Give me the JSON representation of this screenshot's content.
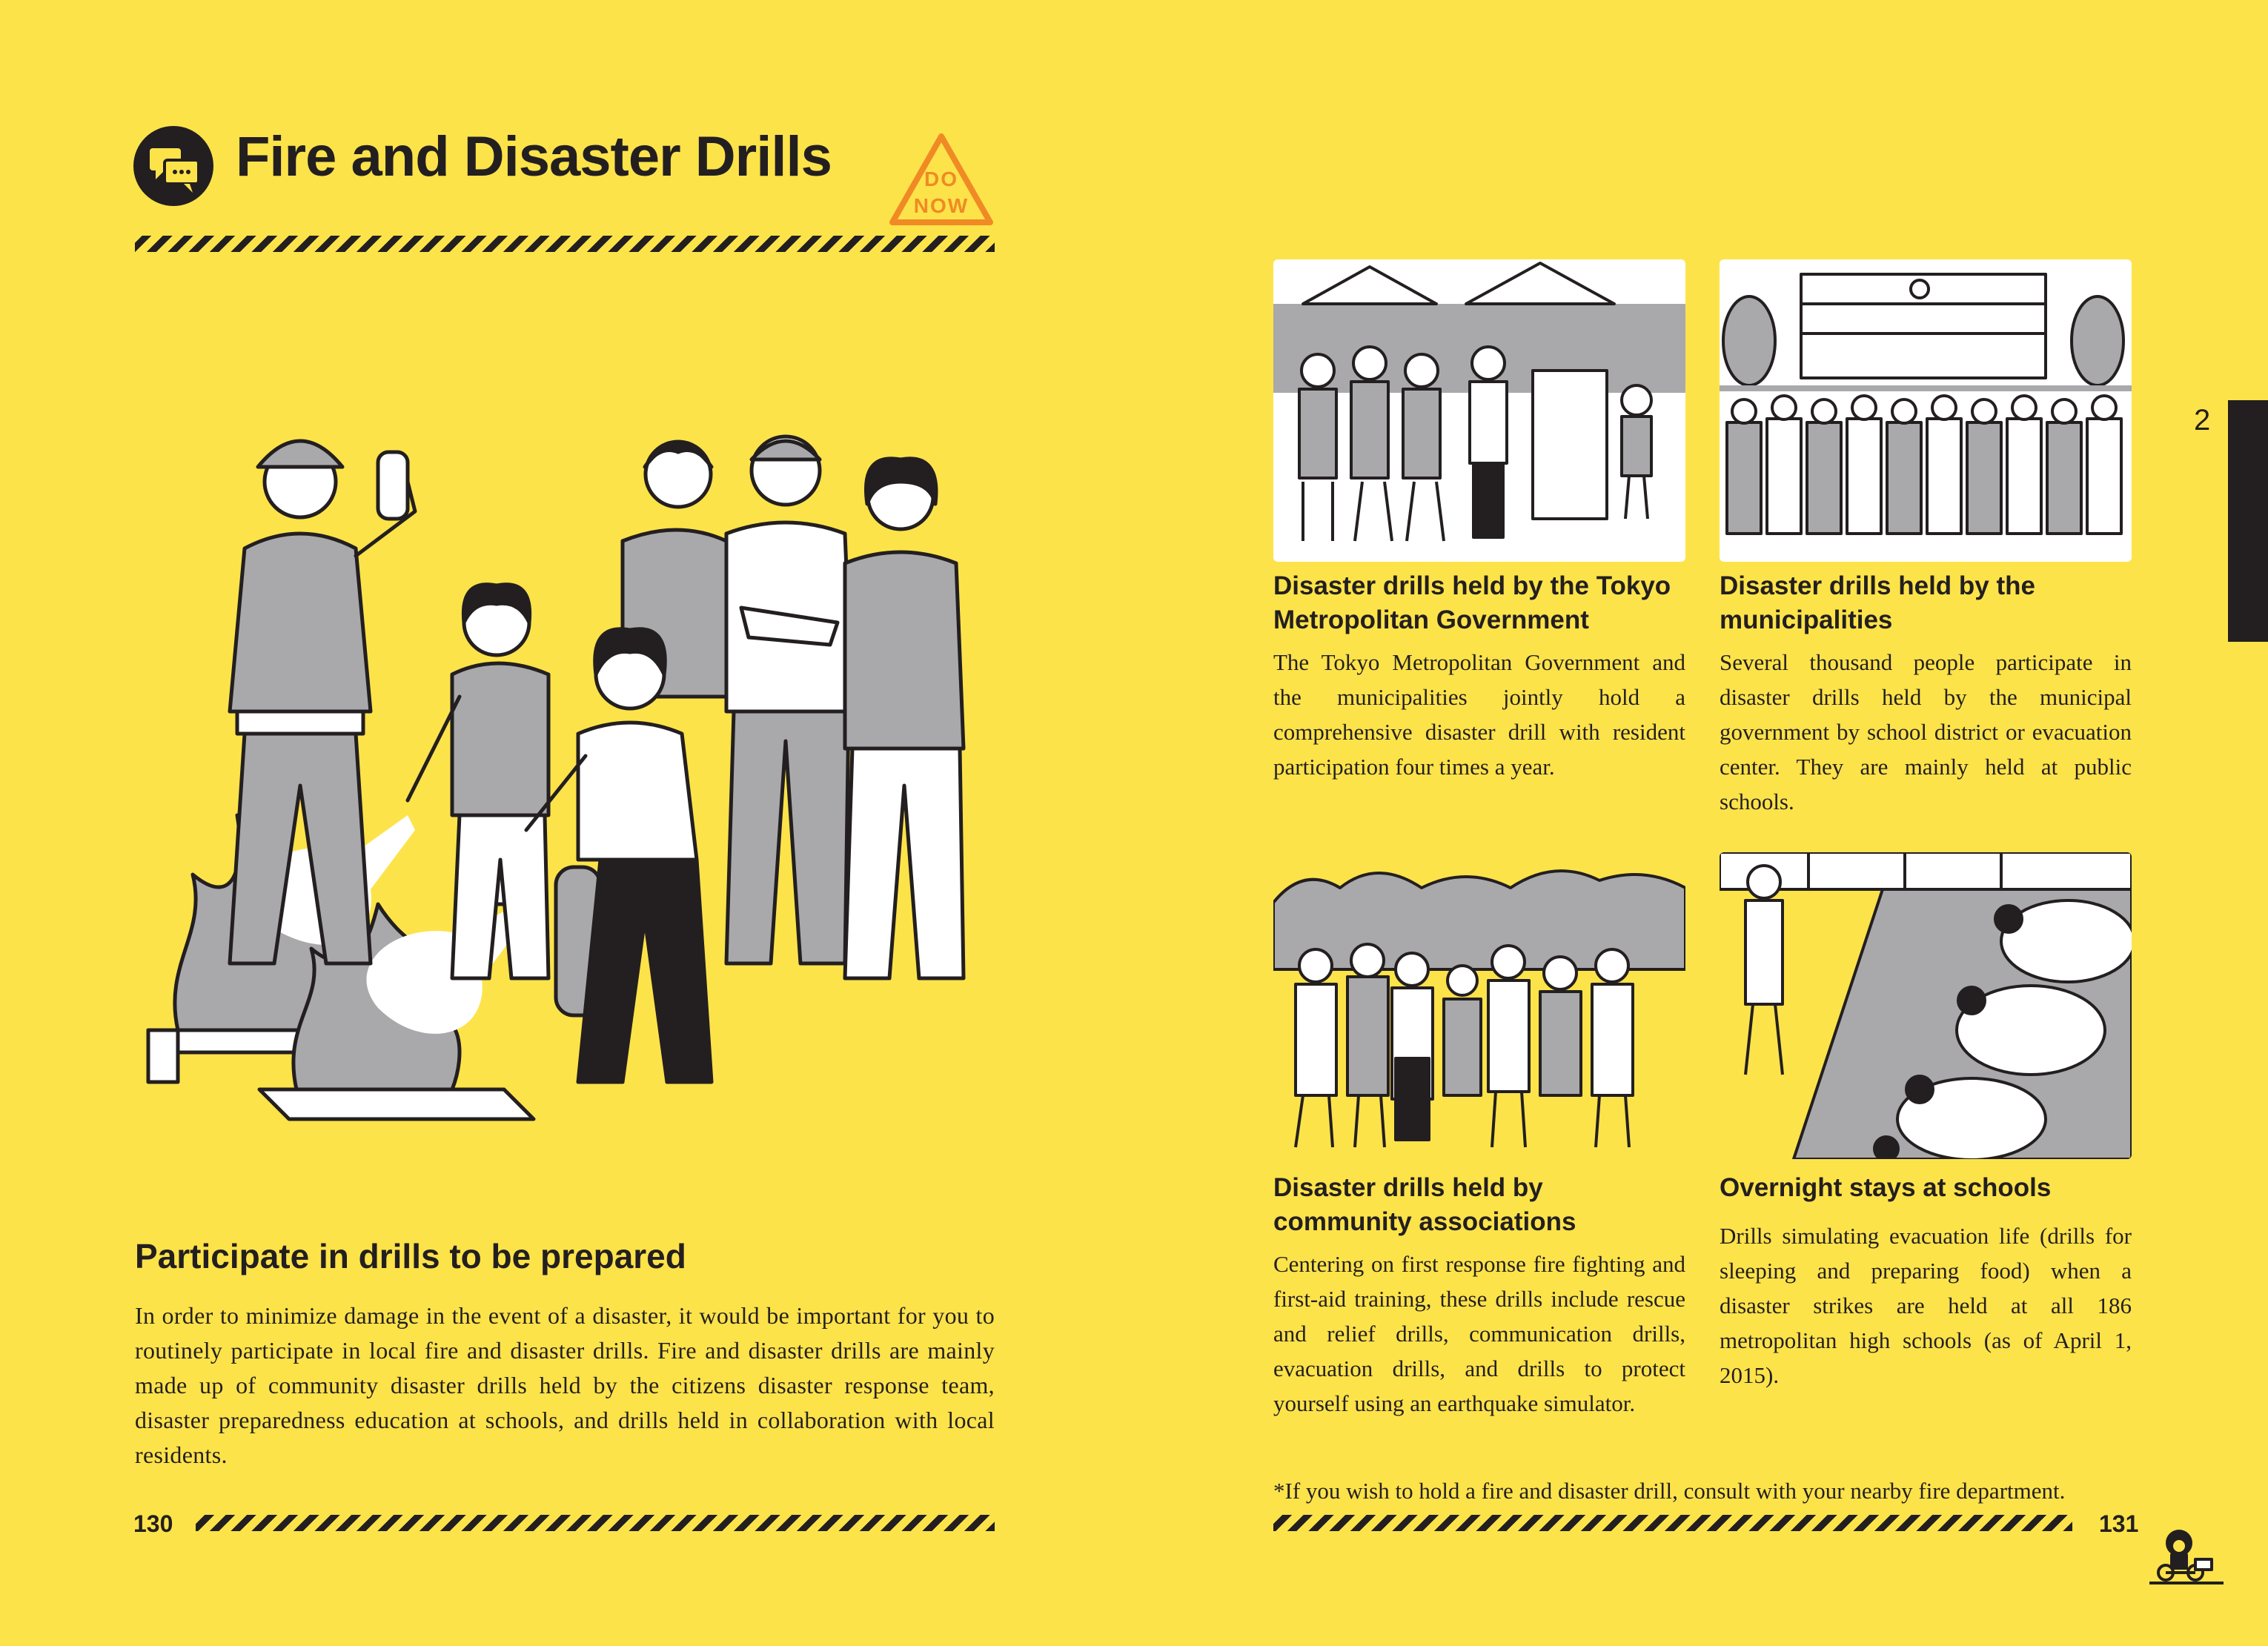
{
  "header": {
    "title": "Fire and Disaster Drills",
    "badge_line1": "DO",
    "badge_line2": "NOW"
  },
  "left": {
    "subtitle": "Participate in drills to be prepared",
    "body": "In order to minimize damage in the event of a disaster, it would be important for you to routinely participate in local fire and disaster drills. Fire and disaster drills are mainly made up of community disaster drills held by the citizens disaster response team, disaster preparedness education at schools, and drills held in collaboration with local residents.",
    "page_number": "130"
  },
  "right": {
    "items": [
      {
        "heading": "Disaster drills held by the Tokyo Metropolitan Government",
        "body": "The Tokyo Metropolitan Government and the municipalities jointly hold a comprehensive disaster drill with resident participation four times a year."
      },
      {
        "heading": "Disaster drills held by the municipalities",
        "body": "Several thousand people participate in disaster drills held by the municipal government by school district or evacuation center. They are mainly held at public schools."
      },
      {
        "heading": "Disaster drills held by community associations",
        "body": "Centering on first response fire fighting and first-aid training, these drills include rescue and relief drills, communication drills, evacuation drills, and drills to protect yourself using an earthquake simulator."
      },
      {
        "heading": "Overnight stays at schools",
        "body": "Drills simulating evacuation life (drills for sleeping and preparing food) when a disaster strikes are held at all 186 metropolitan high schools (as of April 1, 2015)."
      }
    ],
    "footnote": "*If you wish to hold a fire and disaster drill, consult with your nearby fire department.",
    "page_number": "131",
    "chapter_tab": "2"
  },
  "icons": {
    "speech": "speech-bubbles-icon",
    "warning": "warning-triangle-icon",
    "mascot": "mascot-icon"
  },
  "colors": {
    "background": "#fde34a",
    "ink": "#231f20",
    "badge": "#f08a24",
    "gray": "#a9a8ab"
  }
}
